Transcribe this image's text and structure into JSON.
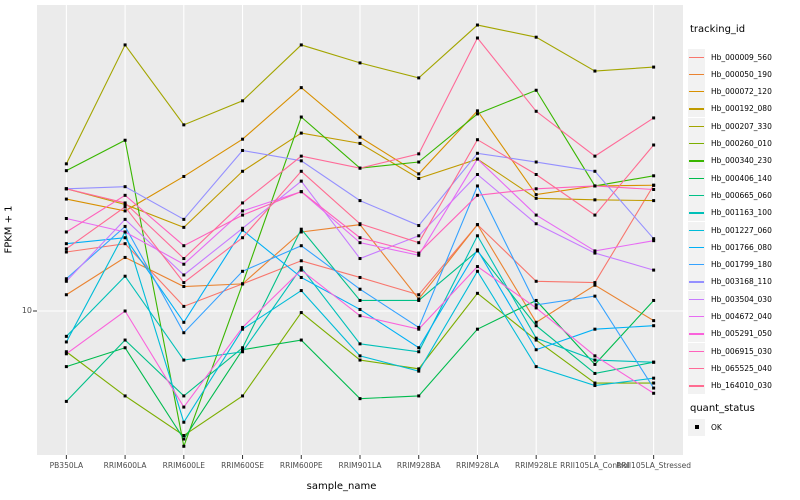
{
  "figure": {
    "x_axis_title": "sample_name",
    "y_axis_title": "FPKM + 1",
    "y_tick_label": "10",
    "legend_tracking_title": "tracking_id",
    "legend_quant_title": "quant_status",
    "legend_quant_ok_label": "OK",
    "panel_bg": "#ebebeb",
    "grid_color": "#ffffff",
    "tick_color": "#333333",
    "point_color": "#000000"
  },
  "chart_data": {
    "type": "line",
    "title": "",
    "xlabel": "sample_name",
    "ylabel": "FPKM + 1",
    "yscale": "log10",
    "ylim": [
      3.8,
      68
    ],
    "y_ticks": [
      10
    ],
    "grid": "major",
    "legend_position": "right",
    "point_shape": "filled-square",
    "quant_status": "OK",
    "categories": [
      "PB350LA",
      "RRIM600LA",
      "RRIM600LE",
      "RRIM600SE",
      "RRIM600PE",
      "RRIM901LA",
      "RRIM928BA",
      "RRIM928LA",
      "RRIM928LE",
      "RRII105LA_Control",
      "RRII105LA_Stressed"
    ],
    "series": [
      {
        "name": "Hb_000009_560",
        "color": "#F8766D",
        "values": [
          14.6,
          15.4,
          10.3,
          11.9,
          13.8,
          12.4,
          11.1,
          17.4,
          12.1,
          12.0,
          22.4
        ]
      },
      {
        "name": "Hb_000050_190",
        "color": "#EA8331",
        "values": [
          11.1,
          14.1,
          11.7,
          11.9,
          16.6,
          17.4,
          10.8,
          17.4,
          9.3,
          11.8,
          9.4
        ]
      },
      {
        "name": "Hb_000072_120",
        "color": "#D89000",
        "values": [
          20.5,
          19.0,
          23.7,
          30.1,
          41.9,
          30.5,
          24.1,
          36.1,
          21.1,
          22.3,
          22.4
        ]
      },
      {
        "name": "Hb_000192_080",
        "color": "#C09B00",
        "values": [
          21.9,
          19.8,
          17.1,
          24.5,
          31.3,
          29.3,
          23.4,
          26.5,
          20.6,
          20.4,
          20.3
        ]
      },
      {
        "name": "Hb_000207_330",
        "color": "#A3A500",
        "values": [
          25.7,
          55.1,
          33.0,
          38.5,
          55.1,
          49.1,
          44.6,
          62.6,
          57.9,
          46.6,
          47.8
        ]
      },
      {
        "name": "Hb_000260_010",
        "color": "#7CAE00",
        "values": [
          7.7,
          5.8,
          4.5,
          5.8,
          9.9,
          7.3,
          6.9,
          11.2,
          8.3,
          6.3,
          6.3
        ]
      },
      {
        "name": "Hb_000340_230",
        "color": "#39B600",
        "values": [
          24.6,
          29.9,
          4.2,
          11.9,
          34.7,
          25.0,
          26.0,
          35.4,
          41.2,
          22.3,
          23.8
        ]
      },
      {
        "name": "Hb_000406_140",
        "color": "#00BB4E",
        "values": [
          7.0,
          7.9,
          4.4,
          7.8,
          8.3,
          5.7,
          5.8,
          8.9,
          10.7,
          7.1,
          10.7
        ]
      },
      {
        "name": "Hb_000665_060",
        "color": "#00C087",
        "values": [
          5.6,
          8.3,
          5.8,
          7.9,
          16.9,
          10.7,
          10.7,
          14.7,
          9.1,
          6.7,
          7.2
        ]
      },
      {
        "name": "Hb_001163_100",
        "color": "#00C0B8",
        "values": [
          8.5,
          12.5,
          7.3,
          7.7,
          13.2,
          8.1,
          7.7,
          16.2,
          8.4,
          7.3,
          7.2
        ]
      },
      {
        "name": "Hb_001227_060",
        "color": "#00BCD8",
        "values": [
          8.2,
          16.6,
          4.9,
          8.9,
          11.4,
          7.5,
          6.8,
          12.9,
          7.0,
          6.2,
          6.5
        ]
      },
      {
        "name": "Hb_001766_080",
        "color": "#00B0F6",
        "values": [
          15.4,
          16.0,
          9.3,
          16.8,
          12.4,
          10.1,
          7.9,
          14.8,
          7.8,
          8.9,
          9.1
        ]
      },
      {
        "name": "Hb_001799_180",
        "color": "#35A2FF",
        "values": [
          12.3,
          17.2,
          8.7,
          12.9,
          15.2,
          11.5,
          9.0,
          22.3,
          10.4,
          11.0,
          6.1
        ]
      },
      {
        "name": "Hb_003168_110",
        "color": "#9590FF",
        "values": [
          21.9,
          22.2,
          18.0,
          28.0,
          26.2,
          20.3,
          17.3,
          27.5,
          26.0,
          24.5,
          15.9
        ]
      },
      {
        "name": "Hb_003504_030",
        "color": "#C77CFF",
        "values": [
          12.1,
          18.0,
          12.6,
          17.0,
          23.0,
          14.0,
          16.2,
          24.0,
          17.5,
          14.5,
          13.0
        ]
      },
      {
        "name": "Hb_004672_040",
        "color": "#E76BF3",
        "values": [
          18.1,
          16.6,
          13.5,
          19.0,
          21.5,
          15.5,
          14.3,
          26.5,
          18.5,
          14.7,
          15.7
        ]
      },
      {
        "name": "Hb_005291_050",
        "color": "#FA62DB",
        "values": [
          7.6,
          10.0,
          5.4,
          9.0,
          13.0,
          9.7,
          8.9,
          13.3,
          10.2,
          7.5,
          5.9
        ]
      },
      {
        "name": "Hb_006915_030",
        "color": "#FF62BC",
        "values": [
          16.6,
          21.0,
          15.2,
          18.5,
          21.5,
          16.0,
          14.5,
          21.0,
          21.9,
          22.3,
          21.8
        ]
      },
      {
        "name": "Hb_065525_040",
        "color": "#FF6A98",
        "values": [
          21.9,
          20.0,
          14.0,
          20.0,
          27.0,
          25.0,
          27.4,
          57.6,
          36.0,
          27.0,
          34.5
        ]
      },
      {
        "name": "Hb_164010_030",
        "color": "#FF6C91",
        "values": [
          14.9,
          19.5,
          12.0,
          16.0,
          24.5,
          17.5,
          15.5,
          30.0,
          24.0,
          18.5,
          29.0
        ]
      }
    ]
  }
}
